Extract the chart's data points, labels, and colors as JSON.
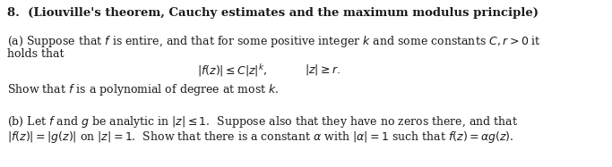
{
  "background_color": "#ffffff",
  "figsize": [
    6.83,
    1.87
  ],
  "dpi": 100,
  "title_line": "8.  (Liouville's theorem, Cauchy estimates and the maximum modulus principle)",
  "part_a_line1": "(a) Suppose that $f$ is entire, and that for some positive integer $k$ and some constants $C, r > 0$ it",
  "part_a_line2": "holds that",
  "part_a_formula1": "$|f(z)| \\leq C|z|^k,$",
  "part_a_formula2": "$|z| \\geq r.$",
  "part_a_line3": "Show that $f$ is a polynomial of degree at most $k$.",
  "part_b_line1": "(b) Let $f$ and $g$ be analytic in $|z| \\leq 1$.  Suppose also that they have no zeros there, and that",
  "part_b_line2": "$|f(z)| = |g(z)|$ on $|z| = 1$.  Show that there is a constant $\\alpha$ with $|\\alpha| = 1$ such that $f(z) = \\alpha g(z)$.",
  "font_size_title": 9.5,
  "font_size_body": 9.0,
  "text_color": "#1a1a1a"
}
